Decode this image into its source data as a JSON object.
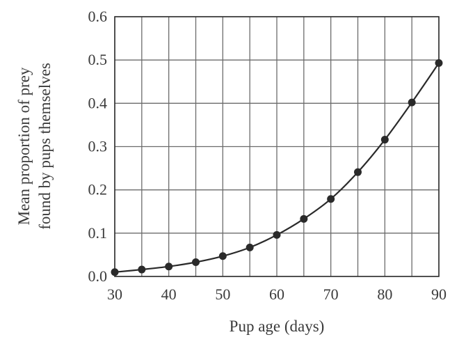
{
  "chart_data": {
    "type": "line",
    "title": "",
    "xlabel": "Pup age (days)",
    "ylabel_lines": [
      "Mean proportion of prey",
      "found by pups themselves"
    ],
    "xlim": [
      30,
      90
    ],
    "ylim": [
      0.0,
      0.6
    ],
    "x_ticks": [
      30,
      40,
      50,
      60,
      70,
      80,
      90
    ],
    "x_tick_labels": [
      "30",
      "40",
      "50",
      "60",
      "70",
      "80",
      "90"
    ],
    "x_grid": [
      30,
      35,
      40,
      45,
      50,
      55,
      60,
      65,
      70,
      75,
      80,
      85,
      90
    ],
    "y_ticks": [
      0.0,
      0.1,
      0.2,
      0.3,
      0.4,
      0.5,
      0.6
    ],
    "y_tick_labels": [
      "0.0",
      "0.1",
      "0.2",
      "0.3",
      "0.4",
      "0.5",
      "0.6"
    ],
    "grid": true,
    "series": [
      {
        "x": [
          30,
          35,
          40,
          45,
          50,
          55,
          60,
          65,
          70,
          75,
          80,
          85,
          90
        ],
        "y": [
          0.01,
          0.016,
          0.023,
          0.033,
          0.047,
          0.067,
          0.096,
          0.133,
          0.179,
          0.241,
          0.316,
          0.402,
          0.493
        ],
        "marker": "circle"
      }
    ],
    "colors": {
      "series": "#2a2a2a",
      "grid": "#6b6b6b",
      "text": "#3a3a3a"
    }
  }
}
